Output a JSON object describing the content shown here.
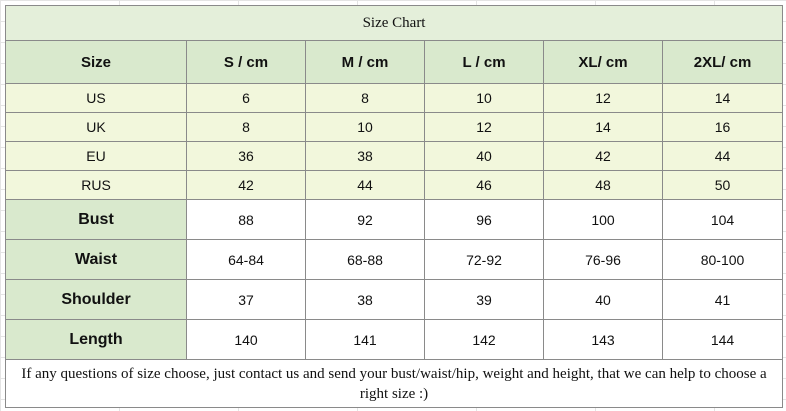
{
  "title": "Size Chart",
  "header": [
    "Size",
    "S / cm",
    "M / cm",
    "L / cm",
    "XL/ cm",
    "2XL/ cm"
  ],
  "size_rows": [
    [
      "US",
      6,
      8,
      10,
      12,
      14
    ],
    [
      "UK",
      8,
      10,
      12,
      14,
      16
    ],
    [
      "EU",
      36,
      38,
      40,
      42,
      44
    ],
    [
      "RUS",
      42,
      44,
      46,
      48,
      50
    ]
  ],
  "measure_rows": [
    [
      "Bust",
      88,
      92,
      96,
      100,
      104
    ],
    [
      "Waist",
      "64-84",
      "68-88",
      "72-92",
      "76-96",
      "80-100"
    ],
    [
      "Shoulder",
      37,
      38,
      39,
      40,
      41
    ],
    [
      "Length",
      140,
      141,
      142,
      143,
      144
    ]
  ],
  "note": "If any questions of size choose, just contact us and send your bust/waist/hip, weight and height, that we can help to choose a right size :)"
}
